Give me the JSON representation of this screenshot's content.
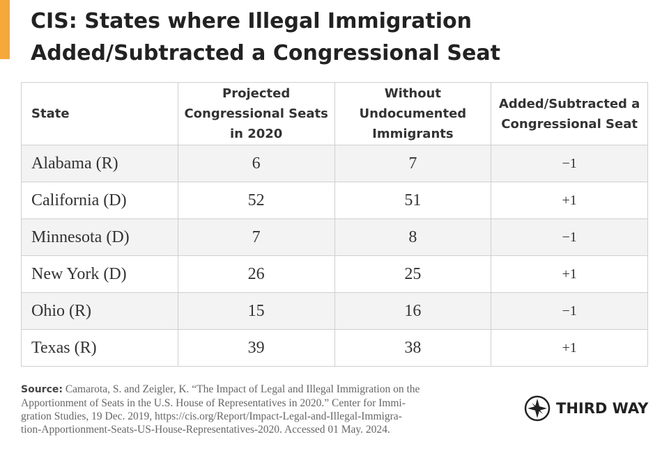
{
  "header": {
    "title": [
      "CIS: States where Illegal Immigration",
      "Added/Subtracted a Congressional Seat"
    ]
  },
  "table": {
    "columns": [
      "State",
      "Projected Congressional Seats in 2020",
      "Without Undocumented Immigrants",
      "Added/Subtracted a Congressional Seat"
    ],
    "rows": [
      [
        "Alabama (R)",
        6,
        7,
        "−1"
      ],
      [
        "California (D)",
        52,
        51,
        "+1"
      ],
      [
        "Minnesota (D)",
        7,
        8,
        "−1"
      ],
      [
        "New York (D)",
        26,
        25,
        "+1"
      ],
      [
        "Ohio (R)",
        15,
        16,
        "−1"
      ],
      [
        "Texas (R)",
        39,
        38,
        "+1"
      ]
    ]
  },
  "footer": {
    "source_label": "Source:",
    "source_lines": [
      "Camarota, S. and Zeigler, K. “The Impact of Legal and Illegal Immigration on the",
      "Apportionment of Seats in the U.S. House of Representatives in 2020.” Center for Immi-",
      "gration Studies, 19 Dec. 2019, https://cis.org/Report/Impact-Legal-and-Illegal-Immigra-",
      "tion-Apportionment-Seats-US-House-Representatives-2020. Accessed 01 May. 2024."
    ],
    "logo": "THIRD WAY"
  }
}
